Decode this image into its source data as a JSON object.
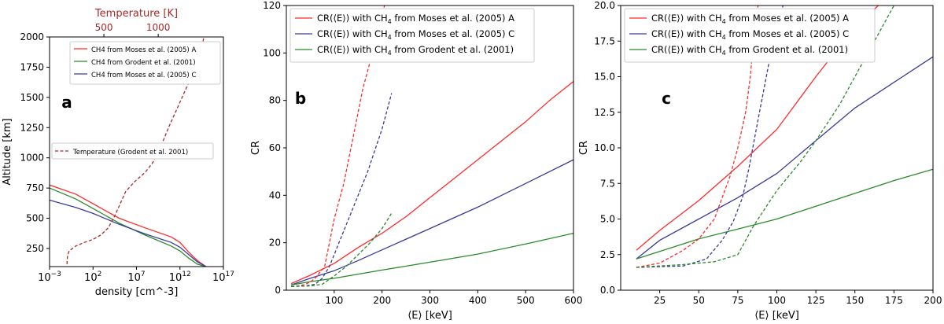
{
  "chart_data": [
    {
      "panel": "a",
      "type": "line",
      "xlabel": "density [cm^-3]",
      "ylabel": "Altitude [km]",
      "x_scale": "log",
      "xlim": [
        0.001,
        1e+17
      ],
      "ylim": [
        100,
        2000
      ],
      "x_ticks": [
        {
          "v": 0.001,
          "b": "10",
          "e": "−3"
        },
        {
          "v": 100,
          "b": "10",
          "e": "2"
        },
        {
          "v": 10000000.0,
          "b": "10",
          "e": "7"
        },
        {
          "v": 1000000000000.0,
          "b": "10",
          "e": "12"
        },
        {
          "v": 1e+17,
          "b": "10",
          "e": "17"
        }
      ],
      "y_ticks": [
        250,
        500,
        750,
        1000,
        1250,
        1500,
        1750,
        2000
      ],
      "top_axis": {
        "label": "Temperature [K]",
        "color": "#a52a2a",
        "ticks": [
          500,
          1000
        ],
        "lim": [
          0,
          1600
        ]
      },
      "panel_label": "a",
      "legend_position": "upper-right",
      "legend2_position": "middle",
      "series": [
        {
          "name": "CH4 from Moses et al. (2005) A",
          "color": "#ff2a2a",
          "style": "solid",
          "points": [
            [
              0.001,
              775
            ],
            [
              1,
              700
            ],
            [
              100,
              620
            ],
            [
              100000,
              500
            ],
            [
              100000000.0,
              420
            ],
            [
              100000000000.0,
              345
            ],
            [
              1000000000000.0,
              300
            ],
            [
              10000000000000.0,
              220
            ],
            [
              100000000000000.0,
              150
            ],
            [
              1000000000000000.0,
              100
            ]
          ]
        },
        {
          "name": "CH4 from Grodent et al. (2001)",
          "color": "#2a8a2a",
          "style": "solid",
          "points": [
            [
              0.001,
              750
            ],
            [
              1,
              660
            ],
            [
              100,
              580
            ],
            [
              100000,
              460
            ],
            [
              100000000.0,
              360
            ],
            [
              100000000000.0,
              270
            ],
            [
              1000000000000.0,
              230
            ],
            [
              10000000000000.0,
              170
            ],
            [
              100000000000000.0,
              120
            ],
            [
              1000000000000000.0,
              100
            ]
          ]
        },
        {
          "name": "CH4 from Moses et al. (2005) C",
          "color": "#3a3a9a",
          "style": "solid",
          "points": [
            [
              0.001,
              650
            ],
            [
              1,
              590
            ],
            [
              100,
              540
            ],
            [
              100000,
              450
            ],
            [
              100000000.0,
              370
            ],
            [
              100000000000.0,
              300
            ],
            [
              1000000000000.0,
              260
            ],
            [
              10000000000000.0,
              200
            ],
            [
              100000000000000.0,
              140
            ],
            [
              1000000000000000.0,
              100
            ]
          ]
        },
        {
          "name": "Temperature (Grodent et al. 2001)",
          "color": "#a52a2a",
          "style": "dashed",
          "axis": "top",
          "points": [
            [
              160,
              120
            ],
            [
              165,
              190
            ],
            [
              180,
              230
            ],
            [
              240,
              270
            ],
            [
              320,
              300
            ],
            [
              400,
              325
            ],
            [
              470,
              360
            ],
            [
              540,
              420
            ],
            [
              600,
              520
            ],
            [
              650,
              620
            ],
            [
              700,
              720
            ],
            [
              780,
              800
            ],
            [
              880,
              880
            ],
            [
              950,
              960
            ],
            [
              1000,
              1050
            ],
            [
              1050,
              1150
            ],
            [
              1100,
              1260
            ],
            [
              1160,
              1380
            ],
            [
              1220,
              1500
            ],
            [
              1280,
              1620
            ],
            [
              1340,
              1740
            ],
            [
              1380,
              1850
            ],
            [
              1410,
              1950
            ],
            [
              1420,
              2000
            ]
          ]
        }
      ]
    },
    {
      "panel": "b",
      "type": "line",
      "xlabel": "⟨E⟩ [keV]",
      "ylabel": "CR",
      "xlim": [
        0,
        600
      ],
      "ylim": [
        0,
        120
      ],
      "x_ticks": [
        100,
        200,
        300,
        400,
        500,
        600
      ],
      "y_ticks": [
        0,
        20,
        40,
        60,
        80,
        100,
        120
      ],
      "panel_label": "b",
      "legend_position": "upper-left",
      "series": [
        {
          "name": "CR(⟨E⟩) with CH",
          "sub": "4",
          "tail": " from Moses et al. (2005) A",
          "color": "#ff2a2a",
          "style": "solid",
          "points": [
            [
              10,
              2.8
            ],
            [
              50,
              6.3
            ],
            [
              100,
              11.3
            ],
            [
              150,
              18
            ],
            [
              200,
              24
            ],
            [
              250,
              31
            ],
            [
              300,
              39
            ],
            [
              350,
              47
            ],
            [
              400,
              55
            ],
            [
              450,
              63
            ],
            [
              500,
              71
            ],
            [
              550,
              80
            ],
            [
              600,
              88
            ]
          ]
        },
        {
          "name": "CR(⟨E⟩) with CH",
          "sub": "4",
          "tail": " from Moses et al. (2005) C",
          "color": "#3a3a9a",
          "style": "solid",
          "points": [
            [
              10,
              2.2
            ],
            [
              50,
              5
            ],
            [
              100,
              8.2
            ],
            [
              150,
              12.5
            ],
            [
              200,
              17
            ],
            [
              300,
              26
            ],
            [
              400,
              35
            ],
            [
              500,
              45
            ],
            [
              600,
              55
            ]
          ]
        },
        {
          "name": "CR(⟨E⟩) with CH",
          "sub": "4",
          "tail": " from Grodent et al. (2001)",
          "color": "#2a8a2a",
          "style": "solid",
          "points": [
            [
              10,
              2.2
            ],
            [
              50,
              3.6
            ],
            [
              100,
              5
            ],
            [
              200,
              8.5
            ],
            [
              300,
              11.8
            ],
            [
              400,
              15.2
            ],
            [
              500,
              19.5
            ],
            [
              600,
              24
            ]
          ]
        },
        {
          "color": "#ff2a2a",
          "style": "dashed",
          "points": [
            [
              10,
              1.6
            ],
            [
              25,
              1.8
            ],
            [
              40,
              2.5
            ],
            [
              50,
              3.5
            ],
            [
              60,
              5
            ],
            [
              70,
              7.5
            ],
            [
              80,
              10
            ],
            [
              90,
              20
            ],
            [
              100,
              30
            ],
            [
              120,
              45
            ],
            [
              140,
              65
            ],
            [
              160,
              85
            ],
            [
              180,
              100
            ],
            [
              200,
              115
            ],
            [
              205,
              120
            ]
          ]
        },
        {
          "color": "#3a3a9a",
          "style": "dashed",
          "points": [
            [
              10,
              1.6
            ],
            [
              40,
              1.8
            ],
            [
              60,
              2.5
            ],
            [
              75,
              5
            ],
            [
              90,
              10
            ],
            [
              110,
              20
            ],
            [
              140,
              35
            ],
            [
              170,
              50
            ],
            [
              200,
              68
            ],
            [
              220,
              83
            ]
          ]
        },
        {
          "color": "#2a8a2a",
          "style": "dashed",
          "points": [
            [
              10,
              1.6
            ],
            [
              50,
              1.8
            ],
            [
              75,
              2.5
            ],
            [
              100,
              6
            ],
            [
              125,
              10
            ],
            [
              150,
              15
            ],
            [
              175,
              20
            ],
            [
              200,
              26
            ],
            [
              220,
              32.5
            ]
          ]
        }
      ]
    },
    {
      "panel": "c",
      "type": "line",
      "xlabel": "⟨E⟩ [keV]",
      "ylabel": "CR",
      "xlim": [
        0,
        200
      ],
      "ylim": [
        0,
        20
      ],
      "x_ticks": [
        25,
        50,
        75,
        100,
        125,
        150,
        175,
        200
      ],
      "y_ticks": [
        0.0,
        2.5,
        5.0,
        7.5,
        10.0,
        12.5,
        15.0,
        17.5,
        20.0
      ],
      "panel_label": "c",
      "legend_position": "upper-left",
      "series": [
        {
          "name": "CR(⟨E⟩) with CH",
          "sub": "4",
          "tail": " from Moses et al. (2005) A",
          "color": "#ff2a2a",
          "style": "solid",
          "points": [
            [
              10,
              2.8
            ],
            [
              25,
              4.2
            ],
            [
              50,
              6.3
            ],
            [
              75,
              8.7
            ],
            [
              100,
              11.3
            ],
            [
              125,
              15
            ],
            [
              150,
              18.5
            ],
            [
              170,
              20.5
            ]
          ]
        },
        {
          "name": "CR(⟨E⟩) with CH",
          "sub": "4",
          "tail": " from Moses et al. (2005) C",
          "color": "#3a3a9a",
          "style": "solid",
          "points": [
            [
              10,
              2.2
            ],
            [
              25,
              3.5
            ],
            [
              50,
              5
            ],
            [
              75,
              6.5
            ],
            [
              100,
              8.2
            ],
            [
              125,
              10.5
            ],
            [
              150,
              12.8
            ],
            [
              175,
              14.6
            ],
            [
              200,
              16.4
            ]
          ]
        },
        {
          "name": "CR(⟨E⟩) with CH",
          "sub": "4",
          "tail": " from Grodent et al. (2001)",
          "color": "#2a8a2a",
          "style": "solid",
          "points": [
            [
              10,
              2.2
            ],
            [
              50,
              3.6
            ],
            [
              75,
              4.3
            ],
            [
              100,
              5
            ],
            [
              125,
              5.9
            ],
            [
              150,
              6.8
            ],
            [
              175,
              7.7
            ],
            [
              200,
              8.5
            ]
          ]
        },
        {
          "color": "#ff2a2a",
          "style": "dashed",
          "points": [
            [
              10,
              1.6
            ],
            [
              25,
              1.9
            ],
            [
              40,
              2.8
            ],
            [
              50,
              3.6
            ],
            [
              60,
              5
            ],
            [
              65,
              6.5
            ],
            [
              70,
              8
            ],
            [
              75,
              10
            ],
            [
              80,
              12.5
            ],
            [
              83,
              15
            ],
            [
              85,
              17.5
            ],
            [
              88,
              20
            ]
          ]
        },
        {
          "color": "#3a3a9a",
          "style": "dashed",
          "points": [
            [
              10,
              1.6
            ],
            [
              40,
              1.7
            ],
            [
              55,
              2.2
            ],
            [
              65,
              3.5
            ],
            [
              72,
              4.8
            ],
            [
              78,
              6.5
            ],
            [
              82,
              8.5
            ],
            [
              88,
              12
            ],
            [
              95,
              16
            ],
            [
              100,
              18.5
            ],
            [
              104,
              20
            ]
          ]
        },
        {
          "color": "#2a8a2a",
          "style": "dashed",
          "points": [
            [
              10,
              1.6
            ],
            [
              40,
              1.8
            ],
            [
              60,
              2
            ],
            [
              75,
              2.5
            ],
            [
              85,
              4.5
            ],
            [
              100,
              7
            ],
            [
              115,
              9
            ],
            [
              125,
              10.5
            ],
            [
              140,
              13
            ],
            [
              155,
              16
            ],
            [
              170,
              19
            ],
            [
              175,
              20
            ]
          ]
        }
      ]
    }
  ]
}
